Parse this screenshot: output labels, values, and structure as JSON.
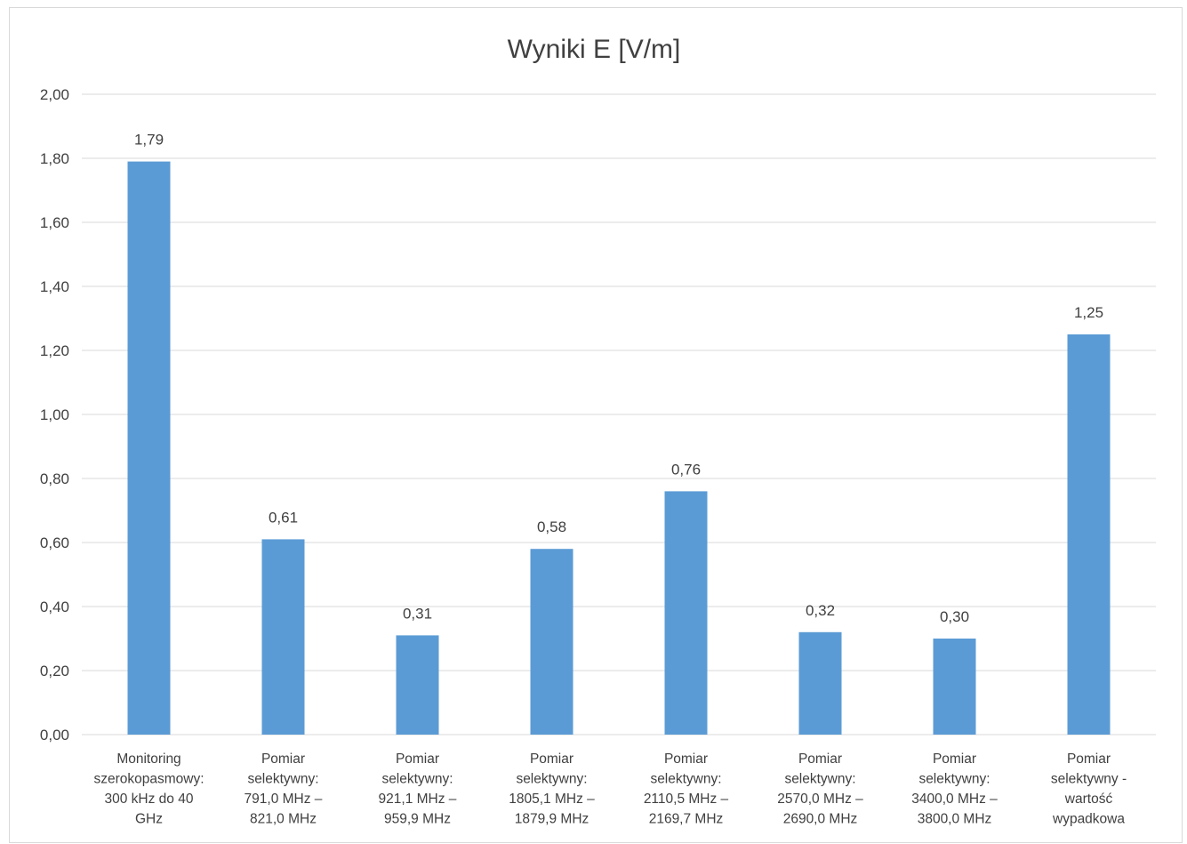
{
  "chart_data": {
    "type": "bar",
    "title": "Wyniki E [V/m]",
    "xlabel": "",
    "ylabel": "",
    "ylim": [
      0,
      2
    ],
    "y_ticks": [
      "0,00",
      "0,20",
      "0,40",
      "0,60",
      "0,80",
      "1,00",
      "1,20",
      "1,40",
      "1,60",
      "1,80",
      "2,00"
    ],
    "categories": [
      [
        "Monitoring",
        "szerokopasmowy:",
        "300 kHz do 40",
        "GHz"
      ],
      [
        "Pomiar",
        "selektywny:",
        "791,0 MHz –",
        "821,0 MHz"
      ],
      [
        "Pomiar",
        "selektywny:",
        "921,1 MHz –",
        "959,9 MHz"
      ],
      [
        "Pomiar",
        "selektywny:",
        "1805,1 MHz –",
        "1879,9 MHz"
      ],
      [
        "Pomiar",
        "selektywny:",
        "2110,5 MHz –",
        "2169,7 MHz"
      ],
      [
        "Pomiar",
        "selektywny:",
        "2570,0 MHz –",
        "2690,0 MHz"
      ],
      [
        "Pomiar",
        "selektywny:",
        "3400,0 MHz –",
        "3800,0 MHz"
      ],
      [
        "Pomiar",
        "selektywny -",
        "wartość",
        "wypadkowa"
      ]
    ],
    "values": [
      1.79,
      0.61,
      0.31,
      0.58,
      0.76,
      0.32,
      0.3,
      1.25
    ],
    "data_labels": [
      "1,79",
      "0,61",
      "0,31",
      "0,58",
      "0,76",
      "0,32",
      "0,30",
      "1,25"
    ],
    "grid": true,
    "legend": "none",
    "bar_color": "#5b9bd5",
    "grid_color": "#d9d9d9",
    "text_color": "#404040"
  }
}
